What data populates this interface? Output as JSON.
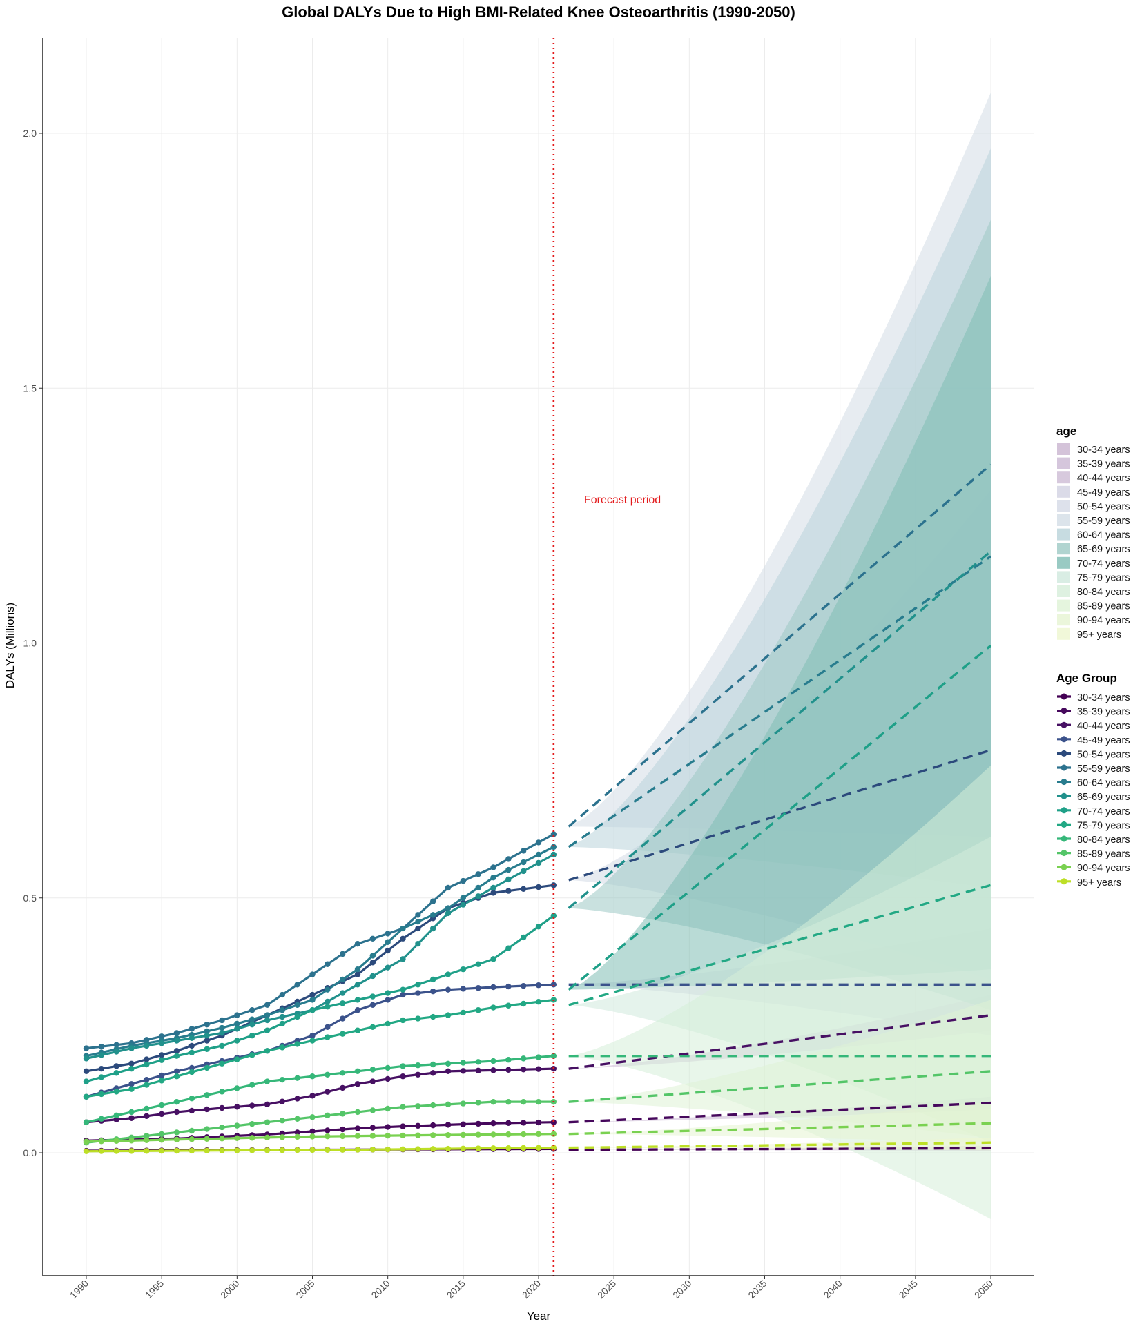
{
  "chart_data": {
    "type": "line",
    "title": "Global DALYs Due to High BMI-Related Knee Osteoarthritis (1990-2050)",
    "xlabel": "Year",
    "ylabel": "DALYs (Millions)",
    "xlim": [
      1990,
      2050
    ],
    "ylim": [
      -0.23,
      2.2
    ],
    "xticks": [
      1990,
      1995,
      2000,
      2005,
      2010,
      2015,
      2020,
      2025,
      2030,
      2035,
      2040,
      2045,
      2050
    ],
    "yticks": [
      0.0,
      0.5,
      1.0,
      1.5,
      2.0
    ],
    "ytick_labels": [
      "0.0",
      "0.5",
      "1.0",
      "1.5",
      "2.0"
    ],
    "grid": true,
    "forecast_start_year": 2021,
    "forecast_label": "Forecast period",
    "legend_placement": "right",
    "band_legend_title": "age",
    "line_legend_title": "Age Group",
    "series": [
      {
        "name": "30-34 years",
        "color": "#440154",
        "band_color": "#c9b4d0",
        "hist": [
          0.004,
          0.0044,
          0.0048,
          0.0052,
          0.0056,
          0.006,
          0.0063,
          0.0066,
          0.0069,
          0.0072,
          0.0075
        ],
        "fc": [
          0.006,
          0.009
        ],
        "band_end": [
          0.004,
          0.014
        ]
      },
      {
        "name": "35-39 years",
        "color": "#46085c",
        "band_color": "#cbb8d3",
        "hist": [
          0.024,
          0.026,
          0.028,
          0.032,
          0.036,
          0.042,
          0.048,
          0.052,
          0.055,
          0.058,
          0.06
        ],
        "fc": [
          0.06,
          0.098
        ],
        "band_end": [
          0.085,
          0.11
        ]
      },
      {
        "name": "40-44 years",
        "color": "#471063",
        "band_color": "#cdbcd5",
        "hist": [
          0.06,
          0.068,
          0.08,
          0.088,
          0.095,
          0.112,
          0.135,
          0.15,
          0.16,
          0.162,
          0.165
        ],
        "fc": [
          0.165,
          0.27
        ],
        "band_end": [
          0.24,
          0.31
        ]
      },
      {
        "name": "45-49 years",
        "color": "#3b528b",
        "band_color": "#d2d2e2",
        "hist": [
          0.11,
          0.135,
          0.16,
          0.18,
          0.2,
          0.23,
          0.28,
          0.31,
          0.32,
          0.325,
          0.33
        ],
        "fc": [
          0.33,
          0.33
        ],
        "band_end": [
          0.23,
          0.44
        ]
      },
      {
        "name": "50-54 years",
        "color": "#2c4a7c",
        "band_color": "#d4dae6",
        "hist": [
          0.16,
          0.175,
          0.2,
          0.23,
          0.27,
          0.31,
          0.35,
          0.42,
          0.48,
          0.51,
          0.525
        ],
        "fc": [
          0.535,
          0.79
        ],
        "band_end": [
          0.34,
          1.3
        ]
      },
      {
        "name": "55-59 years",
        "color": "#2c728e",
        "band_color": "#d3dde6",
        "hist": [
          0.205,
          0.215,
          0.235,
          0.26,
          0.29,
          0.35,
          0.41,
          0.44,
          0.52,
          0.56,
          0.625
        ],
        "fc": [
          0.64,
          1.35
        ],
        "band_end": [
          0.62,
          2.08
        ]
      },
      {
        "name": "60-64 years",
        "color": "#287c8e",
        "band_color": "#b9d3da",
        "hist": [
          0.19,
          0.21,
          0.225,
          0.245,
          0.27,
          0.3,
          0.36,
          0.44,
          0.48,
          0.54,
          0.6
        ],
        "fc": [
          0.6,
          1.17
        ],
        "band_end": [
          0.52,
          1.97
        ]
      },
      {
        "name": "65-69 years",
        "color": "#21918c",
        "band_color": "#9dc9c4",
        "hist": [
          0.185,
          0.205,
          0.22,
          0.235,
          0.26,
          0.28,
          0.33,
          0.38,
          0.47,
          0.52,
          0.585
        ],
        "fc": [
          0.48,
          1.18
        ],
        "band_end": [
          0.28,
          1.83
        ]
      },
      {
        "name": "70-74 years",
        "color": "#1fa088",
        "band_color": "#7fbdb4",
        "hist": [
          0.14,
          0.165,
          0.19,
          0.21,
          0.24,
          0.28,
          0.3,
          0.32,
          0.35,
          0.38,
          0.465
        ],
        "fc": [
          0.32,
          0.995
        ],
        "band_end": [
          0.36,
          1.72
        ]
      },
      {
        "name": "75-79 years",
        "color": "#22a884",
        "band_color": "#cfe9dd",
        "hist": [
          0.11,
          0.125,
          0.15,
          0.175,
          0.2,
          0.22,
          0.24,
          0.26,
          0.27,
          0.285,
          0.3
        ],
        "fc": [
          0.29,
          0.525
        ],
        "band_end": [
          0.02,
          0.62
        ]
      },
      {
        "name": "80-84 years",
        "color": "#35b779",
        "band_color": "#d6eed9",
        "hist": [
          0.06,
          0.08,
          0.1,
          0.12,
          0.14,
          0.15,
          0.16,
          0.17,
          0.175,
          0.18,
          0.19
        ],
        "fc": [
          0.19,
          0.19
        ],
        "band_end": [
          -0.13,
          0.76
        ]
      },
      {
        "name": "85-89 years",
        "color": "#54c568",
        "band_color": "#dff2d6",
        "hist": [
          0.02,
          0.03,
          0.04,
          0.05,
          0.06,
          0.07,
          0.08,
          0.09,
          0.095,
          0.1,
          0.1
        ],
        "fc": [
          0.1,
          0.16
        ],
        "band_end": [
          0.03,
          0.3
        ]
      },
      {
        "name": "90-94 years",
        "color": "#7ad151",
        "band_color": "#e6f4d2",
        "hist": [
          0.022,
          0.024,
          0.026,
          0.028,
          0.03,
          0.032,
          0.033,
          0.034,
          0.035,
          0.036,
          0.037
        ],
        "fc": [
          0.037,
          0.058
        ],
        "band_end": [
          0.02,
          0.1
        ]
      },
      {
        "name": "95+ years",
        "color": "#bddf26",
        "band_color": "#eef6cf",
        "hist": [
          0.003,
          0.0035,
          0.004,
          0.0045,
          0.005,
          0.0055,
          0.006,
          0.007,
          0.008,
          0.009,
          0.01
        ],
        "fc": [
          0.01,
          0.02
        ],
        "band_end": [
          0.005,
          0.03
        ]
      }
    ]
  }
}
